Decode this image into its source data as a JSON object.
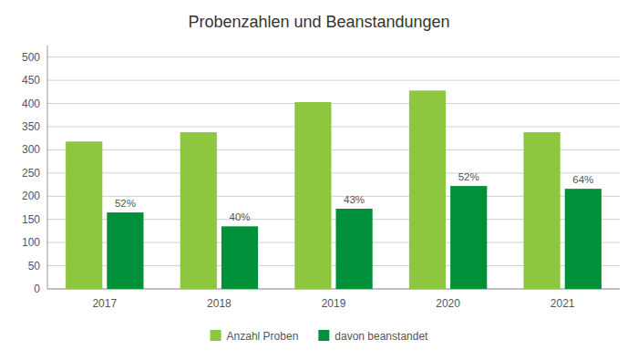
{
  "chart_data": {
    "type": "bar",
    "title": "Probenzahlen und Beanstandungen",
    "categories": [
      "2017",
      "2018",
      "2019",
      "2020",
      "2021"
    ],
    "series": [
      {
        "name": "Anzahl Proben",
        "color": "#8dc63f",
        "values": [
          318,
          338,
          403,
          428,
          338
        ]
      },
      {
        "name": "davon beanstandet",
        "color": "#00903a",
        "values": [
          165,
          135,
          173,
          222,
          216
        ],
        "annotations": [
          "52%",
          "40%",
          "43%",
          "52%",
          "64%"
        ]
      }
    ],
    "ylim": [
      0,
      525
    ],
    "yticks": [
      0,
      50,
      100,
      150,
      200,
      250,
      300,
      350,
      400,
      450,
      500
    ],
    "grid": true,
    "legend": "bottom"
  }
}
